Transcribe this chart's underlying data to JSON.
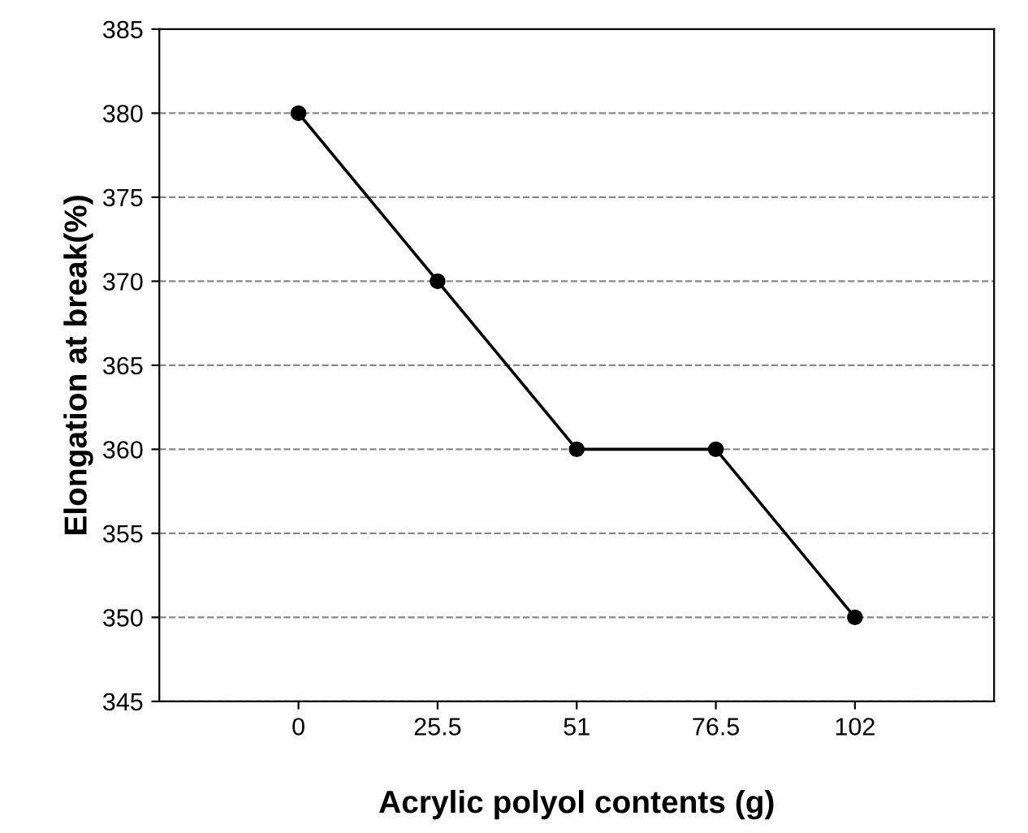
{
  "chart_data": {
    "type": "line",
    "xlabel": "Acrylic polyol contents (g)",
    "ylabel": "Elongation at break(%)",
    "categories": [
      "0",
      "25.5",
      "51",
      "76.5",
      "102"
    ],
    "series": [
      {
        "color": "#000000",
        "values": [
          380,
          370,
          360,
          360,
          350
        ]
      }
    ],
    "ylim": [
      345,
      385
    ],
    "yticks": [
      345,
      350,
      355,
      360,
      365,
      370,
      375,
      380,
      385
    ],
    "grid": "y",
    "marker": "circle",
    "line_style": "solid"
  }
}
